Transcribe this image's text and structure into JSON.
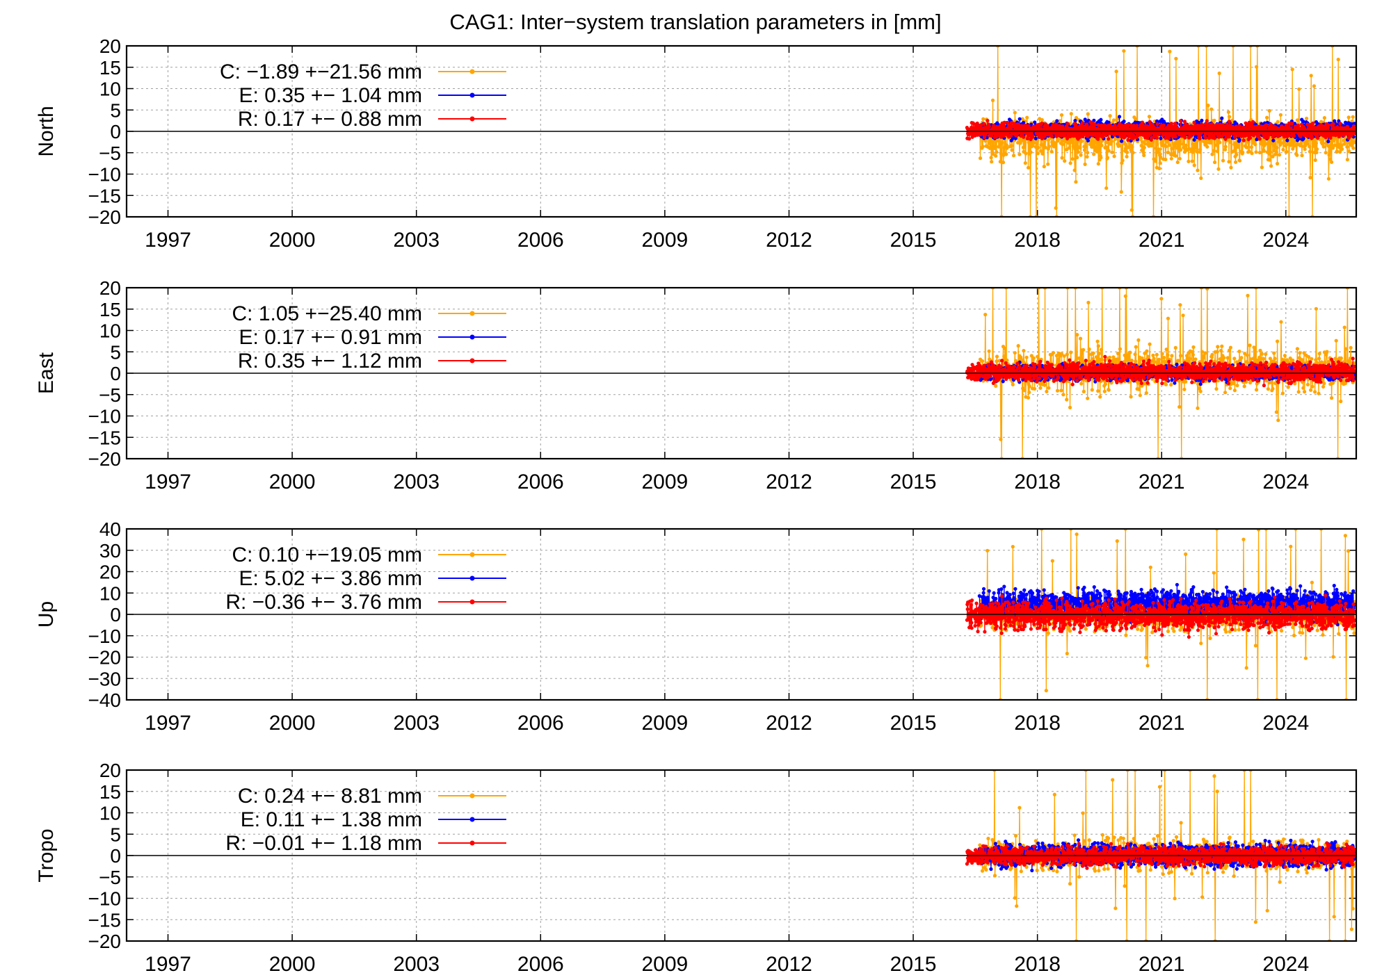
{
  "chart_data": {
    "title": "CAG1: Inter−system translation parameters in [mm]",
    "type": "line",
    "x_ticks": [
      1997,
      2000,
      2003,
      2006,
      2009,
      2012,
      2015,
      2018,
      2021,
      2024
    ],
    "xlim": [
      1996,
      2025.7
    ],
    "series_colors": {
      "C": "#ffa500",
      "E": "#0000ff",
      "R": "#ff0000"
    },
    "panels": [
      {
        "ylabel": "North",
        "ylim": [
          -20,
          20
        ],
        "y_ticks": [
          20,
          15,
          10,
          5,
          0,
          -5,
          -10,
          -15,
          -20
        ],
        "legend": [
          {
            "series": "C",
            "text": "C:  −1.89 +−21.56 mm"
          },
          {
            "series": "E",
            "text": "E:   0.35 +− 1.04 mm"
          },
          {
            "series": "R",
            "text": "R:   0.17 +− 0.88 mm"
          }
        ],
        "series": [
          {
            "name": "C",
            "mean": -1.89,
            "rms": 21.56,
            "x_start": 2016.6
          },
          {
            "name": "E",
            "mean": 0.35,
            "rms": 1.04,
            "x_start": 2016.6
          },
          {
            "name": "R",
            "mean": 0.17,
            "rms": 0.88,
            "x_start": 2016.3
          }
        ]
      },
      {
        "ylabel": "East",
        "ylim": [
          -20,
          20
        ],
        "y_ticks": [
          20,
          15,
          10,
          5,
          0,
          -5,
          -10,
          -15,
          -20
        ],
        "legend": [
          {
            "series": "C",
            "text": "C:   1.05 +−25.40 mm"
          },
          {
            "series": "E",
            "text": "E:   0.17 +− 0.91 mm"
          },
          {
            "series": "R",
            "text": "R:   0.35 +− 1.12 mm"
          }
        ],
        "series": [
          {
            "name": "C",
            "mean": 1.05,
            "rms": 25.4,
            "x_start": 2016.6
          },
          {
            "name": "E",
            "mean": 0.17,
            "rms": 0.91,
            "x_start": 2016.6
          },
          {
            "name": "R",
            "mean": 0.35,
            "rms": 1.12,
            "x_start": 2016.3
          }
        ]
      },
      {
        "ylabel": "Up",
        "ylim": [
          -40,
          40
        ],
        "y_ticks": [
          40,
          30,
          20,
          10,
          0,
          -10,
          -20,
          -30,
          -40
        ],
        "legend": [
          {
            "series": "C",
            "text": "C:   0.10 +−19.05 mm"
          },
          {
            "series": "E",
            "text": "E:   5.02 +− 3.86 mm"
          },
          {
            "series": "R",
            "text": "R:  −0.36 +− 3.76 mm"
          }
        ],
        "series": [
          {
            "name": "C",
            "mean": 0.1,
            "rms": 19.05,
            "x_start": 2016.6
          },
          {
            "name": "E",
            "mean": 5.02,
            "rms": 3.86,
            "x_start": 2016.6
          },
          {
            "name": "R",
            "mean": -0.36,
            "rms": 3.76,
            "x_start": 2016.3
          }
        ]
      },
      {
        "ylabel": "Tropo",
        "ylim": [
          -20,
          20
        ],
        "y_ticks": [
          20,
          15,
          10,
          5,
          0,
          -5,
          -10,
          -15,
          -20
        ],
        "legend": [
          {
            "series": "C",
            "text": "C:   0.24 +− 8.81 mm"
          },
          {
            "series": "E",
            "text": "E:   0.11 +− 1.38 mm"
          },
          {
            "series": "R",
            "text": "R:  −0.01 +− 1.18 mm"
          }
        ],
        "series": [
          {
            "name": "C",
            "mean": 0.24,
            "rms": 8.81,
            "x_start": 2016.6
          },
          {
            "name": "E",
            "mean": 0.11,
            "rms": 1.38,
            "x_start": 2016.6
          },
          {
            "name": "R",
            "mean": -0.01,
            "rms": 1.18,
            "x_start": 2016.3
          }
        ]
      }
    ]
  }
}
